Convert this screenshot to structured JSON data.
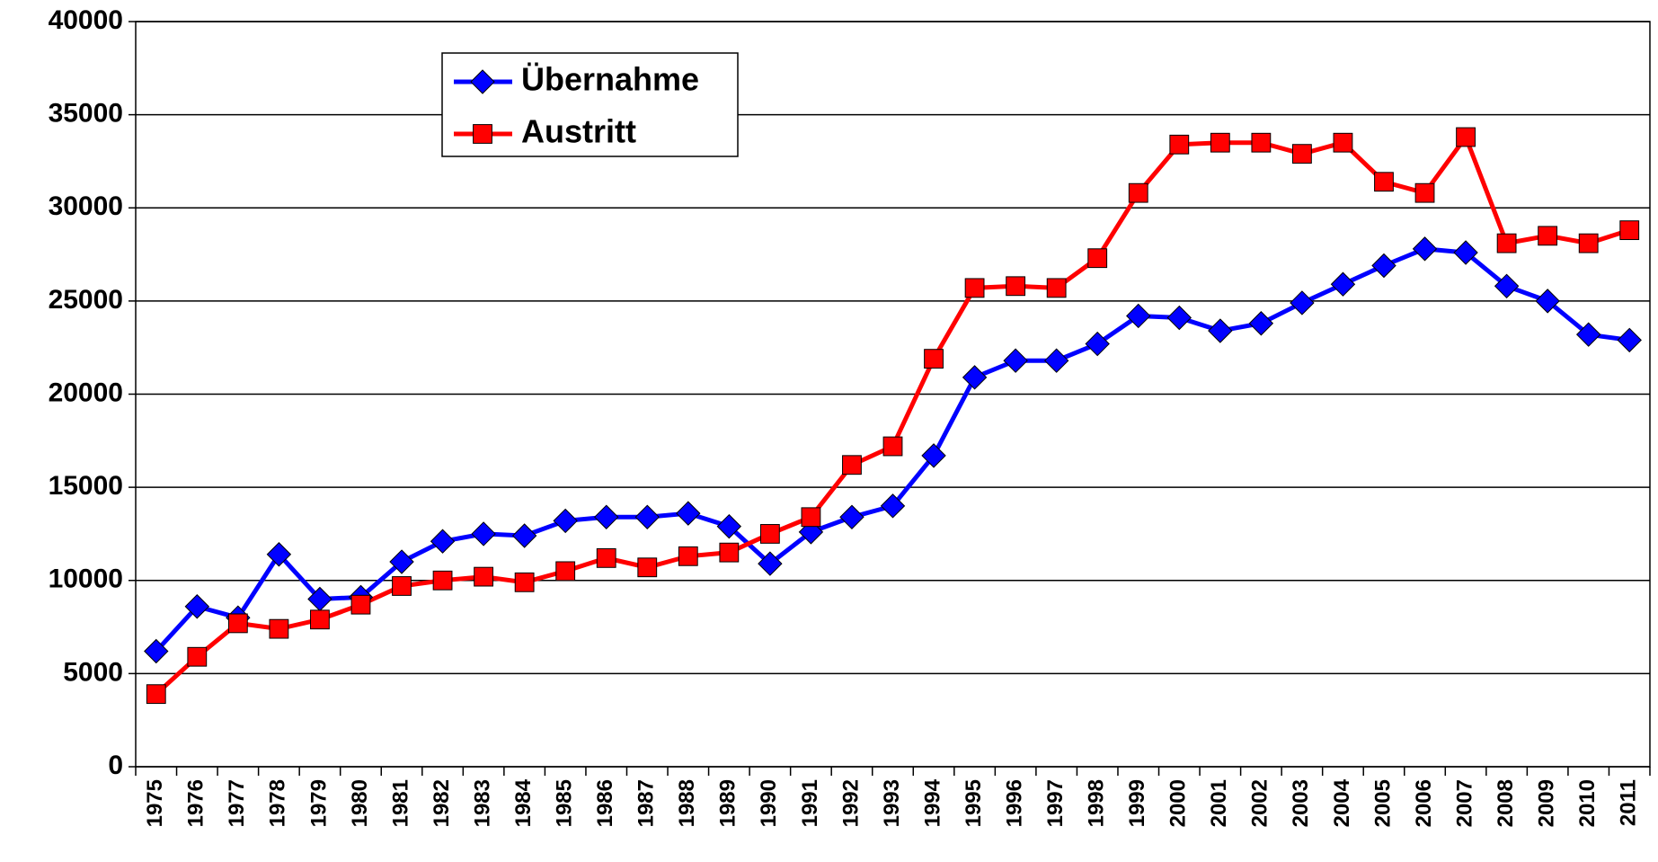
{
  "chart_data": {
    "type": "line",
    "categories": [
      "1975",
      "1976",
      "1977",
      "1978",
      "1979",
      "1980",
      "1981",
      "1982",
      "1983",
      "1984",
      "1985",
      "1986",
      "1987",
      "1988",
      "1989",
      "1990",
      "1991",
      "1992",
      "1993",
      "1994",
      "1995",
      "1996",
      "1997",
      "1998",
      "1999",
      "2000",
      "2001",
      "2002",
      "2003",
      "2004",
      "2005",
      "2006",
      "2007",
      "2008",
      "2009",
      "2010",
      "2011"
    ],
    "series": [
      {
        "name": "Übernahme",
        "color": "#0000ff",
        "marker": "diamond",
        "values": [
          6200,
          8600,
          8000,
          11400,
          9000,
          9100,
          11000,
          12100,
          12500,
          12400,
          13200,
          13400,
          13400,
          13600,
          12900,
          10900,
          12600,
          13400,
          14000,
          16700,
          20900,
          21800,
          21800,
          22700,
          24200,
          24100,
          23400,
          23800,
          24900,
          25900,
          26900,
          27800,
          27600,
          25800,
          25000,
          23200,
          22900
        ]
      },
      {
        "name": "Austritt",
        "color": "#ff0000",
        "marker": "square",
        "values": [
          3900,
          5900,
          7700,
          7400,
          7900,
          8700,
          9700,
          10000,
          10200,
          9900,
          10500,
          11200,
          10700,
          11300,
          11500,
          12500,
          13400,
          16200,
          17200,
          21900,
          25700,
          25800,
          25700,
          27300,
          30800,
          33400,
          33500,
          33500,
          32900,
          33500,
          31400,
          30800,
          33800,
          28100,
          28500,
          28100,
          28800
        ]
      }
    ],
    "ylim": [
      0,
      40000
    ],
    "yticks": [
      0,
      5000,
      10000,
      15000,
      20000,
      25000,
      30000,
      35000,
      40000
    ],
    "grid": true
  }
}
